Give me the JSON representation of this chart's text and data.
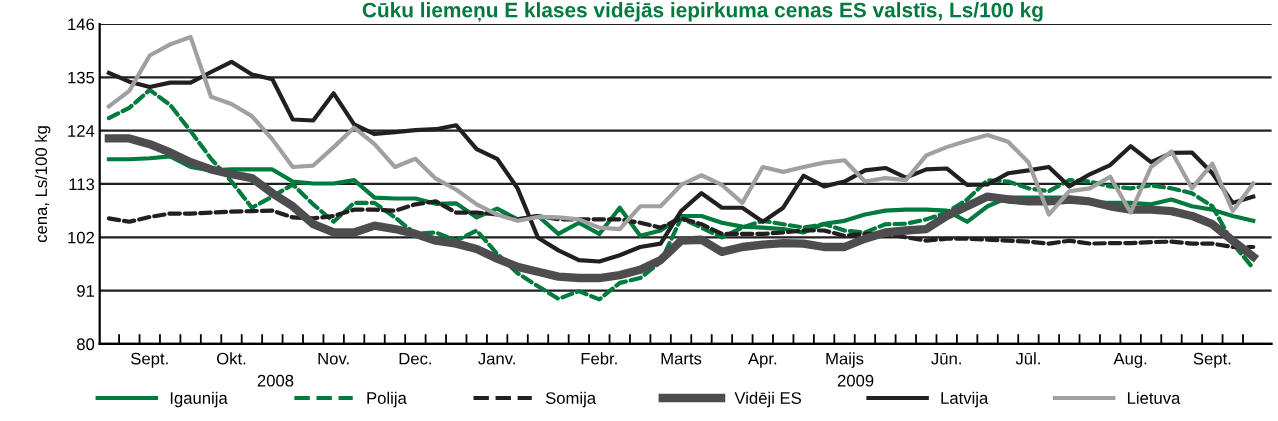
{
  "chart_data": {
    "type": "line",
    "title": "Cūku liemeņu E klases vidējās iepirkuma cenas ES valstīs, Ls/100 kg",
    "ylabel": "cena, Ls/100 kg",
    "categories": [
      null,
      null,
      "Sept.",
      null,
      null,
      null,
      "Okt.",
      null,
      null,
      null,
      null,
      "Nov.",
      null,
      null,
      null,
      "Dec.",
      null,
      null,
      null,
      "Janv.",
      null,
      null,
      null,
      null,
      "Febr.",
      null,
      null,
      null,
      "Marts",
      null,
      null,
      null,
      "Apr.",
      null,
      null,
      null,
      "Maijs",
      null,
      null,
      null,
      null,
      "Jūn.",
      null,
      null,
      null,
      "Jūl.",
      null,
      null,
      null,
      null,
      "Aug.",
      null,
      null,
      null,
      "Sept.",
      null,
      null
    ],
    "series": [
      {
        "name": "Igaunija",
        "color": "#007a3d",
        "line_style": "solid",
        "values": [
          118.1,
          118.1,
          118.3,
          118.7,
          116.5,
          115.8,
          116.0,
          116.0,
          116.0,
          113.5,
          113.1,
          113.1,
          113.8,
          110.2,
          110.0,
          110.0,
          108.9,
          109.0,
          106.1,
          107.9,
          105.7,
          106.4,
          102.7,
          105.0,
          102.7,
          108.1,
          102.3,
          103.4,
          106.4,
          106.4,
          105.0,
          104.2,
          104.0,
          103.7,
          103.0,
          104.8,
          105.4,
          106.7,
          107.5,
          107.7,
          107.7,
          107.5,
          105.2,
          108.4,
          110.2,
          110.2,
          110.2,
          110.2,
          109.1,
          109.1,
          109.1,
          108.8,
          109.8,
          108.4,
          107.7,
          106.4,
          105.4
        ]
      },
      {
        "name": "Polija",
        "color": "#007a3d",
        "line_style": "dashed",
        "values": [
          126.6,
          128.7,
          132.4,
          129.3,
          123.9,
          118.2,
          113.5,
          108.1,
          110.4,
          112.9,
          108.8,
          105.2,
          109.1,
          109.1,
          106.1,
          102.7,
          103.0,
          101.3,
          103.4,
          98.6,
          94.6,
          91.9,
          89.3,
          90.9,
          89.2,
          92.6,
          93.6,
          96.9,
          105.9,
          104.0,
          102.0,
          104.0,
          105.4,
          104.7,
          104.0,
          104.7,
          103.4,
          103.0,
          104.7,
          104.8,
          105.7,
          107.1,
          109.8,
          113.8,
          113.5,
          112.1,
          111.5,
          113.8,
          113.5,
          112.5,
          112.1,
          112.7,
          112.1,
          111.1,
          108.4,
          100.7,
          95.6
        ]
      },
      {
        "name": "Somija",
        "color": "#231f20",
        "line_style": "dashed",
        "values": [
          105.9,
          105.2,
          106.2,
          106.9,
          106.9,
          107.1,
          107.3,
          107.4,
          107.5,
          106.1,
          105.9,
          106.4,
          107.7,
          107.7,
          107.5,
          108.8,
          109.4,
          107.1,
          107.1,
          106.7,
          105.7,
          106.4,
          105.7,
          105.7,
          105.7,
          105.7,
          105.0,
          104.0,
          105.9,
          104.7,
          102.7,
          102.7,
          102.7,
          103.0,
          103.4,
          103.4,
          102.3,
          102.7,
          102.7,
          102.0,
          101.3,
          101.7,
          101.7,
          101.5,
          101.3,
          101.1,
          100.7,
          101.3,
          100.7,
          100.8,
          100.8,
          101.0,
          101.1,
          100.7,
          100.7,
          100.0,
          100.0
        ]
      },
      {
        "name": "Vidēji ES",
        "color": "#4d4d4f",
        "line_style": "solid",
        "values": [
          122.4,
          122.4,
          121.2,
          119.5,
          117.5,
          116.0,
          115.0,
          114.2,
          111.1,
          108.4,
          104.7,
          103.0,
          103.0,
          104.4,
          103.7,
          102.7,
          101.3,
          100.7,
          99.6,
          97.6,
          95.9,
          94.9,
          93.9,
          93.6,
          93.6,
          94.2,
          95.3,
          97.3,
          101.3,
          101.5,
          99.0,
          100.0,
          100.5,
          100.8,
          100.7,
          100.0,
          100.0,
          101.7,
          103.0,
          103.4,
          103.7,
          106.4,
          108.4,
          110.4,
          109.8,
          109.4,
          109.4,
          109.8,
          109.4,
          108.4,
          107.7,
          107.7,
          107.4,
          106.4,
          104.7,
          101.3,
          98.0
        ]
      },
      {
        "name": "Latvija",
        "color": "#231f20",
        "line_style": "solid",
        "values": [
          135.9,
          134.1,
          133.0,
          133.9,
          133.9,
          136.1,
          138.2,
          135.6,
          134.6,
          126.3,
          126.1,
          131.7,
          125.3,
          123.3,
          123.7,
          124.1,
          124.3,
          125.1,
          120.2,
          118.2,
          112.1,
          101.9,
          99.3,
          97.3,
          97.0,
          98.3,
          100.0,
          100.7,
          107.4,
          111.1,
          108.1,
          108.1,
          105.2,
          108.1,
          114.7,
          112.5,
          113.5,
          115.8,
          116.3,
          114.3,
          116.0,
          116.2,
          112.8,
          112.9,
          115.2,
          115.8,
          116.5,
          112.5,
          115.0,
          116.9,
          120.8,
          117.5,
          119.4,
          119.5,
          115.2,
          109.1,
          110.4
        ]
      },
      {
        "name": "Lietuva",
        "color": "#a0a0a0",
        "line_style": "solid",
        "values": [
          129.0,
          132.2,
          139.5,
          141.8,
          143.3,
          131.0,
          129.5,
          127.0,
          122.2,
          116.5,
          116.8,
          120.6,
          124.6,
          121.2,
          116.5,
          118.2,
          114.1,
          111.8,
          108.8,
          106.7,
          105.4,
          106.2,
          106.1,
          105.7,
          104.0,
          103.7,
          108.4,
          108.4,
          112.8,
          114.8,
          112.8,
          109.1,
          116.5,
          115.5,
          116.5,
          117.4,
          117.9,
          113.5,
          114.2,
          113.8,
          118.9,
          120.6,
          121.9,
          123.1,
          121.7,
          117.5,
          106.7,
          111.5,
          112.1,
          114.5,
          107.1,
          116.5,
          119.7,
          112.1,
          117.2,
          107.4,
          113.1
        ]
      }
    ],
    "ylim": [
      80,
      146
    ],
    "yticks": [
      80,
      91,
      102,
      113,
      124,
      135,
      146
    ],
    "grid": "y",
    "legend": "bottom",
    "annotations": [
      "2008",
      "2009"
    ]
  }
}
